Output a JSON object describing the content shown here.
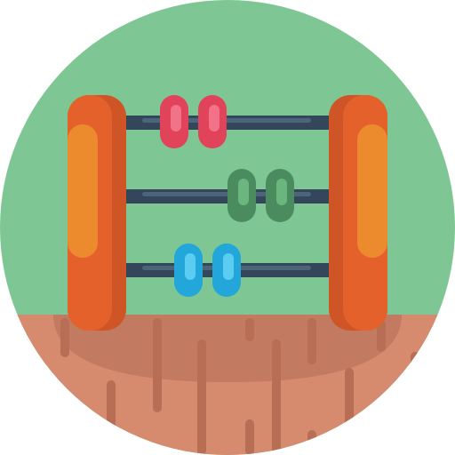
{
  "icon": {
    "name": "abacus-icon",
    "colors": {
      "background_sky": "#7ec795",
      "table_wood": "#d68b6e",
      "table_shadow": "#c27a60",
      "table_grain": "#b86e55",
      "frame_orange": "#e5612b",
      "frame_orange_dark": "#cf5527",
      "frame_highlight": "#ec8b2e",
      "rod": "#34475a",
      "rod_highlight": "#4d6579",
      "bead_red": "#e1435a",
      "bead_red_highlight": "#f27287",
      "bead_green": "#4b8c5e",
      "bead_green_highlight": "#6bb57f",
      "bead_blue": "#23a6d9",
      "bead_blue_highlight": "#5ccdf2"
    },
    "rows": [
      {
        "color": "red",
        "bead_count": 2
      },
      {
        "color": "green",
        "bead_count": 2
      },
      {
        "color": "blue",
        "bead_count": 2
      }
    ]
  }
}
